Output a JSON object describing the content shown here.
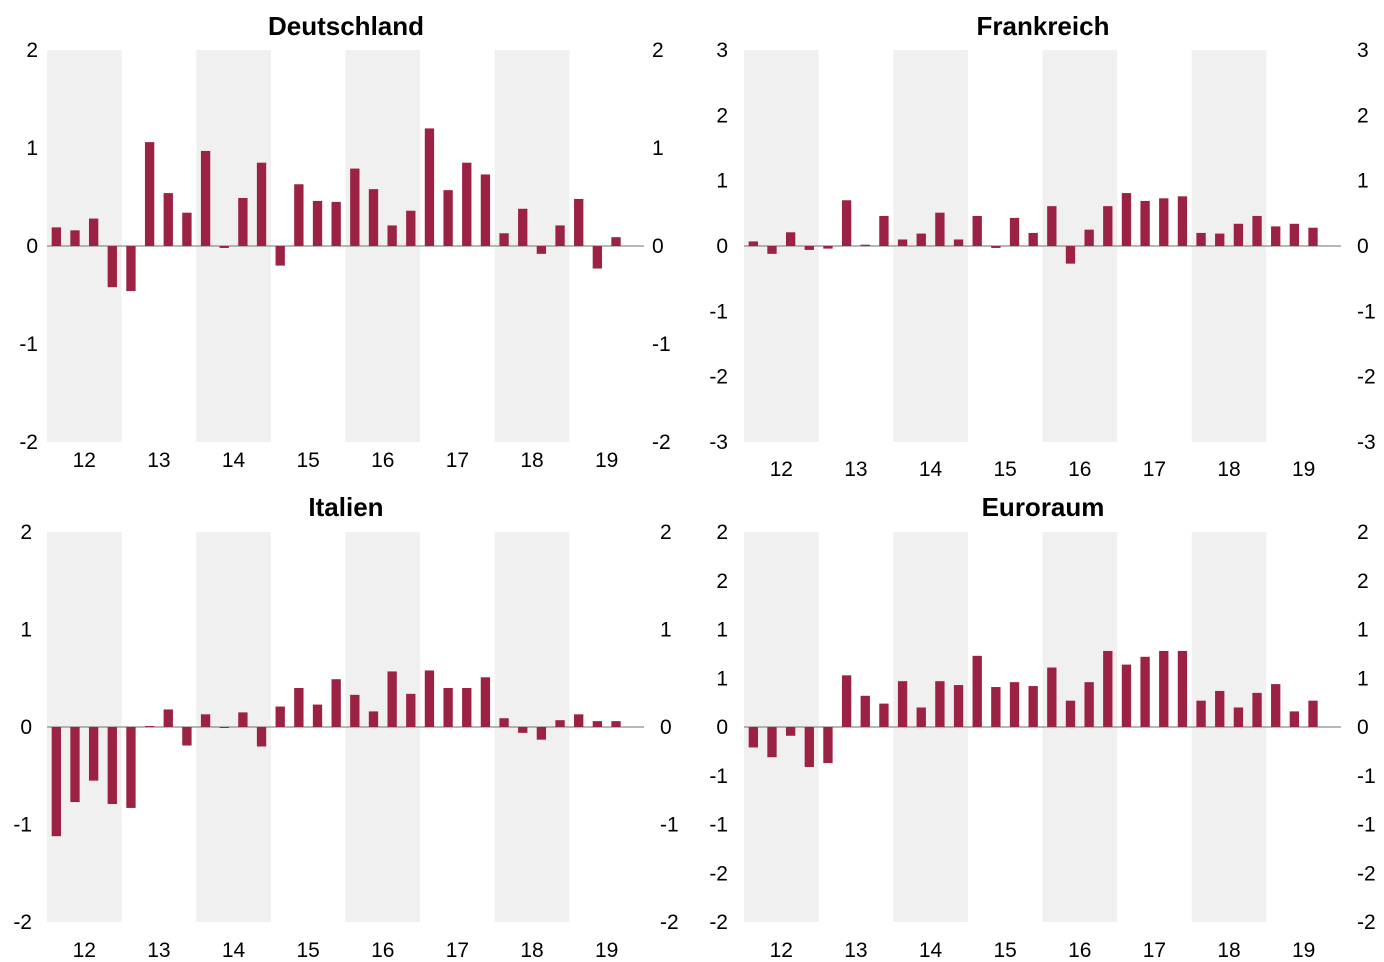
{
  "colors": {
    "bar": "#9b2242",
    "band": "#f0f0f0",
    "zero_line": "#8c8c8c"
  },
  "chart_data": [
    {
      "type": "bar",
      "title": "Deutschland",
      "categories": [
        "12Q1",
        "12Q2",
        "12Q3",
        "12Q4",
        "13Q1",
        "13Q2",
        "13Q3",
        "13Q4",
        "14Q1",
        "14Q2",
        "14Q3",
        "14Q4",
        "15Q1",
        "15Q2",
        "15Q3",
        "15Q4",
        "16Q1",
        "16Q2",
        "16Q3",
        "16Q4",
        "17Q1",
        "17Q2",
        "17Q3",
        "17Q4",
        "18Q1",
        "18Q2",
        "18Q3",
        "18Q4",
        "19Q1",
        "19Q2",
        "19Q3"
      ],
      "values": [
        0.19,
        0.16,
        0.28,
        -0.42,
        -0.46,
        1.06,
        0.54,
        0.34,
        0.97,
        -0.02,
        0.49,
        0.85,
        -0.2,
        0.63,
        0.46,
        0.45,
        0.79,
        0.58,
        0.21,
        0.36,
        1.2,
        0.57,
        0.85,
        0.73,
        0.13,
        0.38,
        -0.08,
        0.21,
        0.48,
        -0.23,
        0.09
      ],
      "x_tick_labels": [
        "12",
        "13",
        "14",
        "15",
        "16",
        "17",
        "18",
        "19"
      ],
      "y_ticks": [
        2,
        1,
        0,
        -1,
        -2
      ],
      "y_tick_labels": [
        "2",
        "1",
        "0",
        "-1",
        "-2"
      ],
      "ylim": [
        -2,
        2
      ],
      "shaded_years": [
        "12",
        "14",
        "16",
        "18",
        "20"
      ]
    },
    {
      "type": "bar",
      "title": "Frankreich",
      "categories": [
        "12Q1",
        "12Q2",
        "12Q3",
        "12Q4",
        "13Q1",
        "13Q2",
        "13Q3",
        "13Q4",
        "14Q1",
        "14Q2",
        "14Q3",
        "14Q4",
        "15Q1",
        "15Q2",
        "15Q3",
        "15Q4",
        "16Q1",
        "16Q2",
        "16Q3",
        "16Q4",
        "17Q1",
        "17Q2",
        "17Q3",
        "17Q4",
        "18Q1",
        "18Q2",
        "18Q3",
        "18Q4",
        "19Q1",
        "19Q2",
        "19Q3"
      ],
      "values": [
        0.07,
        -0.12,
        0.21,
        -0.06,
        -0.04,
        0.7,
        0.02,
        0.46,
        0.1,
        0.19,
        0.51,
        0.1,
        0.46,
        -0.03,
        0.43,
        0.2,
        0.61,
        -0.27,
        0.25,
        0.61,
        0.81,
        0.69,
        0.73,
        0.76,
        0.2,
        0.19,
        0.34,
        0.46,
        0.3,
        0.34,
        0.28
      ],
      "x_tick_labels": [
        "12",
        "13",
        "14",
        "15",
        "16",
        "17",
        "18",
        "19"
      ],
      "y_ticks": [
        3,
        2,
        1,
        0,
        -1,
        -2,
        -3
      ],
      "y_tick_labels": [
        "3",
        "2",
        "1",
        "0",
        "-1",
        "-2",
        "-3"
      ],
      "ylim": [
        -3,
        3
      ],
      "shaded_years": [
        "12",
        "14",
        "16",
        "18",
        "20"
      ]
    },
    {
      "type": "bar",
      "title": "Italien",
      "categories": [
        "12Q1",
        "12Q2",
        "12Q3",
        "12Q4",
        "13Q1",
        "13Q2",
        "13Q3",
        "13Q4",
        "14Q1",
        "14Q2",
        "14Q3",
        "14Q4",
        "15Q1",
        "15Q2",
        "15Q3",
        "15Q4",
        "16Q1",
        "16Q2",
        "16Q3",
        "16Q4",
        "17Q1",
        "17Q2",
        "17Q3",
        "17Q4",
        "18Q1",
        "18Q2",
        "18Q3",
        "18Q4",
        "19Q1",
        "19Q2",
        "19Q3"
      ],
      "values": [
        -1.12,
        -0.77,
        -0.55,
        -0.79,
        -0.83,
        0.01,
        0.18,
        -0.19,
        0.13,
        0.0,
        0.15,
        -0.2,
        0.21,
        0.4,
        0.23,
        0.49,
        0.33,
        0.16,
        0.57,
        0.34,
        0.58,
        0.4,
        0.4,
        0.51,
        0.09,
        -0.06,
        -0.13,
        0.07,
        0.13,
        0.06,
        0.06
      ],
      "x_tick_labels": [
        "12",
        "13",
        "14",
        "15",
        "16",
        "17",
        "18",
        "19"
      ],
      "y_ticks": [
        2,
        1,
        0,
        -1,
        -2
      ],
      "y_tick_labels": [
        "2",
        "1",
        "0",
        "-1",
        "-2"
      ],
      "ylim": [
        -2,
        2
      ],
      "shaded_years": [
        "12",
        "14",
        "16",
        "18",
        "20"
      ]
    },
    {
      "type": "bar",
      "title": "Euroraum",
      "categories": [
        "12Q1",
        "12Q2",
        "12Q3",
        "12Q4",
        "13Q1",
        "13Q2",
        "13Q3",
        "13Q4",
        "14Q1",
        "14Q2",
        "14Q3",
        "14Q4",
        "15Q1",
        "15Q2",
        "15Q3",
        "15Q4",
        "16Q1",
        "16Q2",
        "16Q3",
        "16Q4",
        "17Q1",
        "17Q2",
        "17Q3",
        "17Q4",
        "18Q1",
        "18Q2",
        "18Q3",
        "18Q4",
        "19Q1",
        "19Q2",
        "19Q3"
      ],
      "values": [
        -0.21,
        -0.31,
        -0.09,
        -0.41,
        -0.37,
        0.53,
        0.32,
        0.24,
        0.47,
        0.2,
        0.47,
        0.43,
        0.73,
        0.41,
        0.46,
        0.42,
        0.61,
        0.27,
        0.46,
        0.78,
        0.64,
        0.72,
        0.78,
        0.78,
        0.27,
        0.37,
        0.2,
        0.35,
        0.44,
        0.16,
        0.27
      ],
      "x_tick_labels": [
        "12",
        "13",
        "14",
        "15",
        "16",
        "17",
        "18",
        "19"
      ],
      "y_ticks": [
        2,
        1.5,
        1,
        0.5,
        0,
        -0.5,
        -1,
        -1.5,
        -2
      ],
      "y_tick_labels": [
        "2",
        "2",
        "1",
        "1",
        "0",
        "-1",
        "-1",
        "-2",
        "-2"
      ],
      "ylim": [
        -2,
        2
      ],
      "shaded_years": [
        "12",
        "14",
        "16",
        "18",
        "20"
      ]
    }
  ]
}
